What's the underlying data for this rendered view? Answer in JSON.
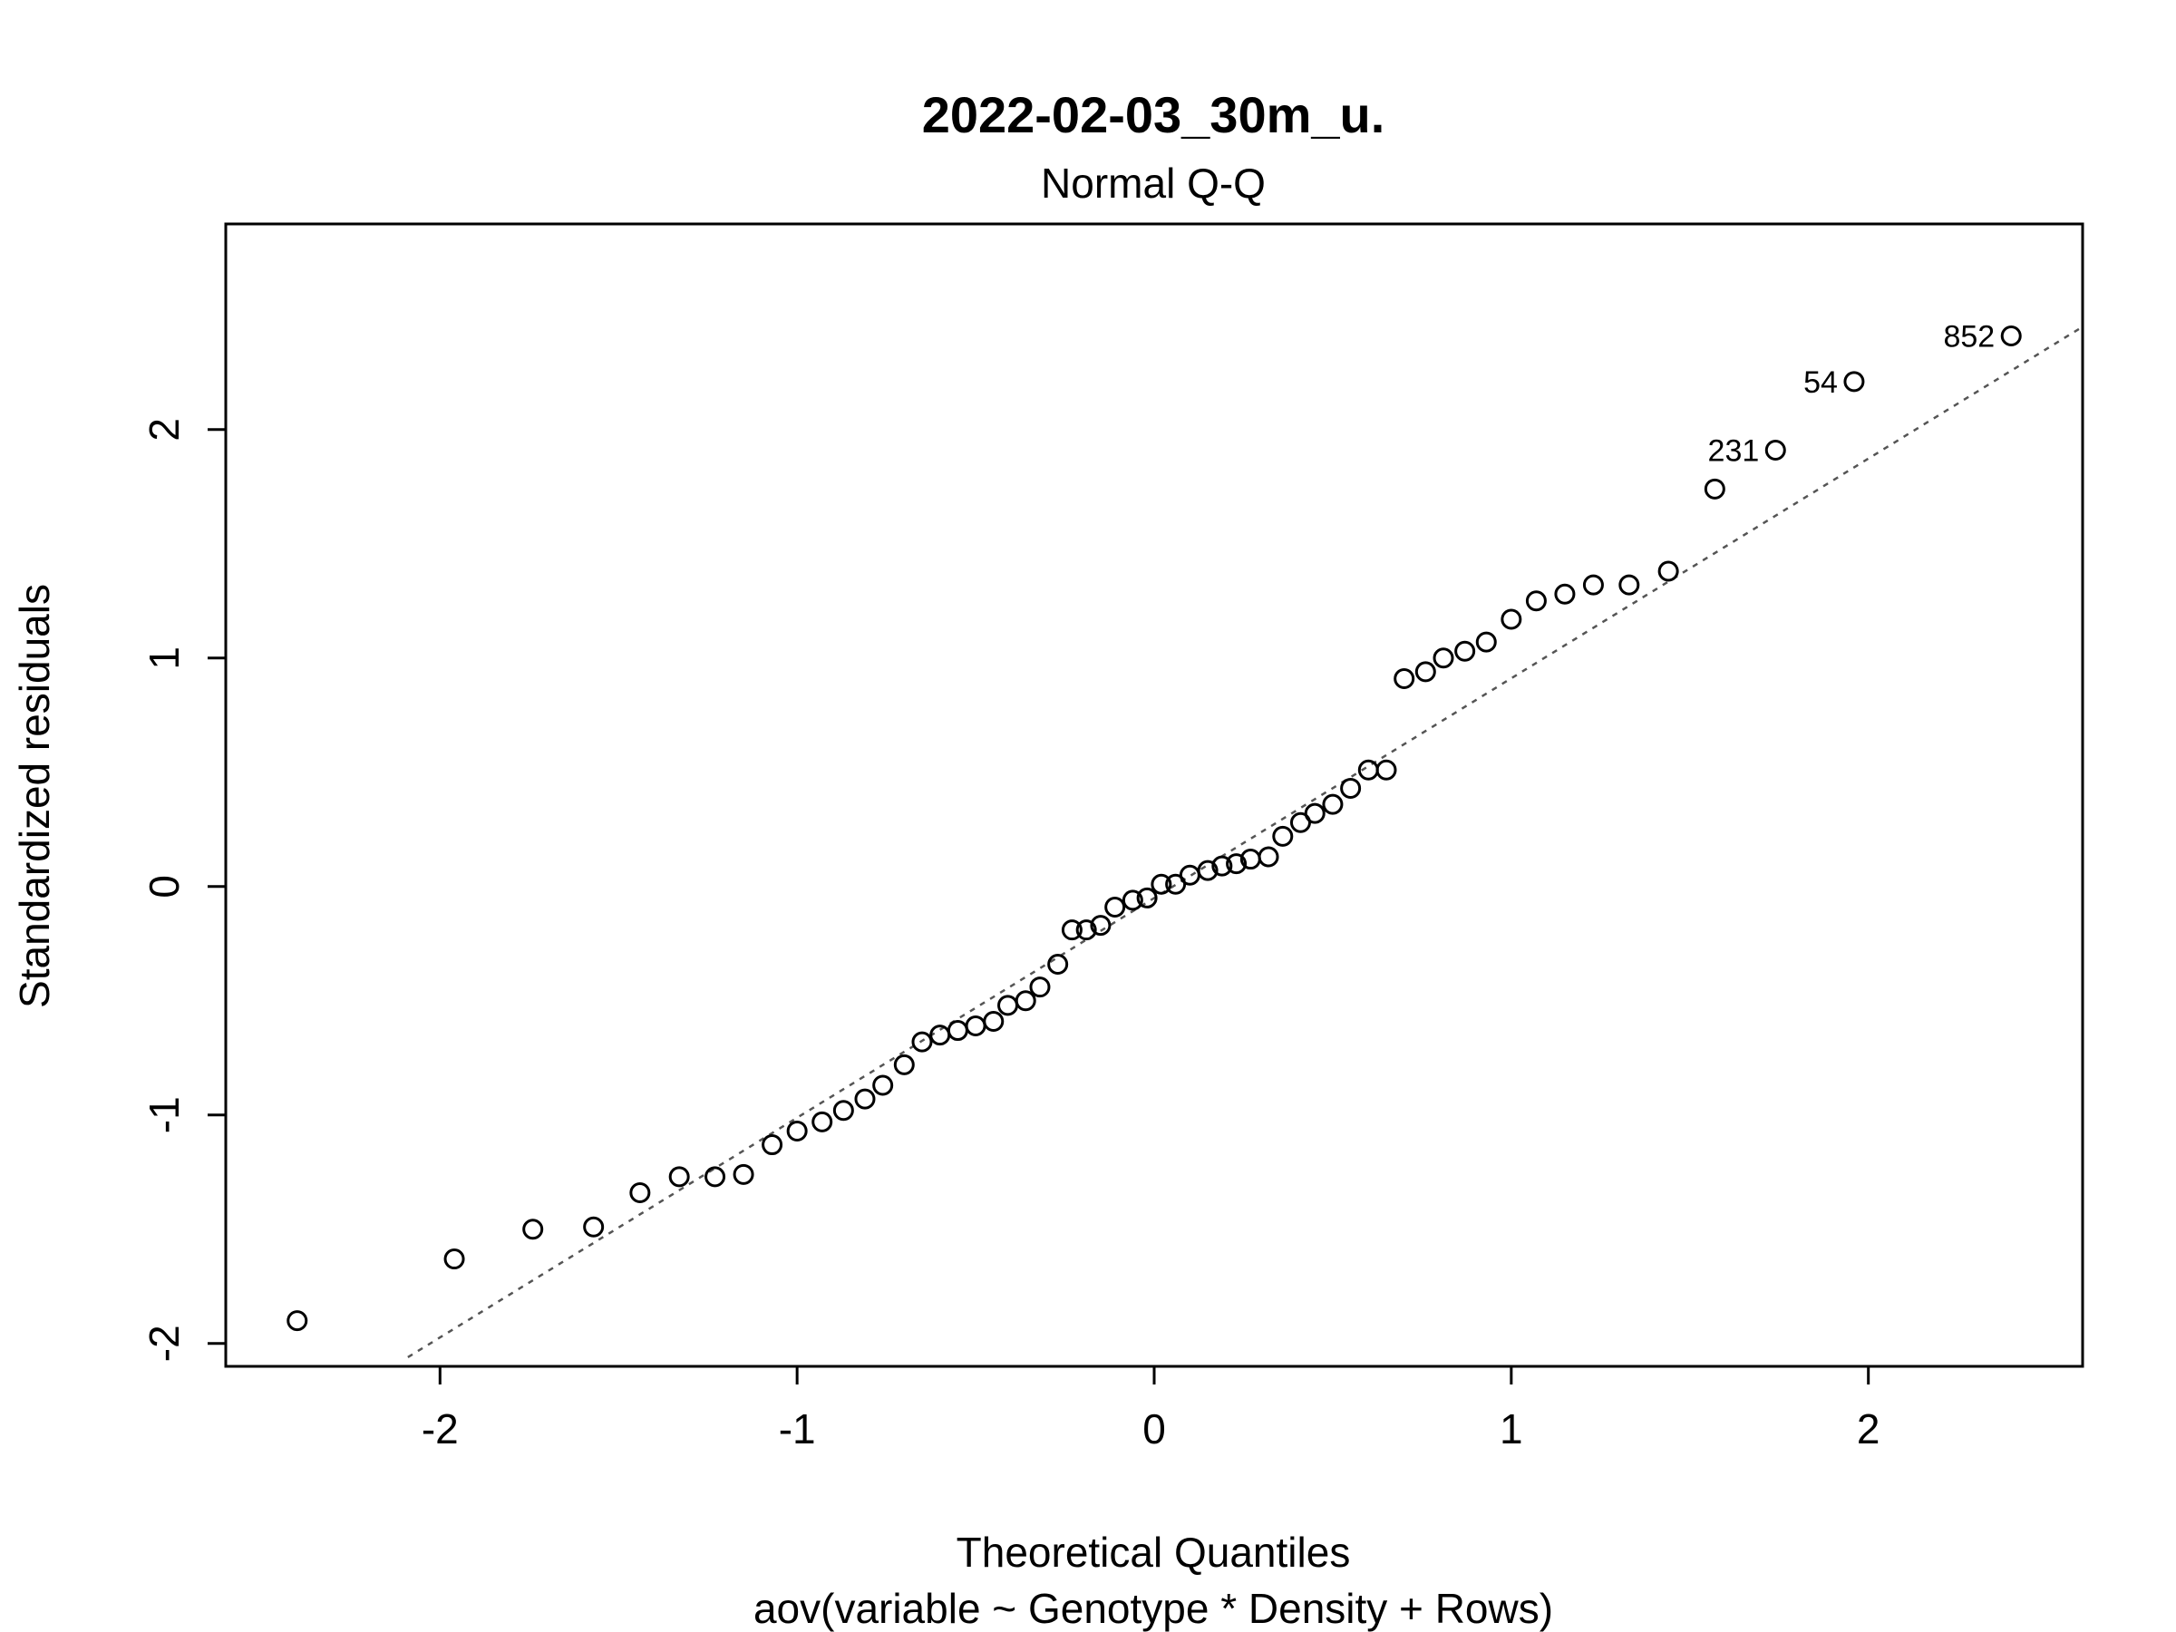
{
  "chart_data": {
    "type": "scatter",
    "title": "2022-02-03_30m_u.",
    "subtitle": "Normal Q-Q",
    "xlabel": "Theoretical Quantiles",
    "xlabel2": "aov(variable ~ Genotype * Density + Rows)",
    "ylabel": "Standardized residuals",
    "xlim": [
      -2.6,
      2.6
    ],
    "ylim": [
      -2.1,
      2.9
    ],
    "xticks": [
      -2,
      -1,
      0,
      1,
      2
    ],
    "yticks": [
      -2,
      -1,
      0,
      1,
      2
    ],
    "xtick_labels": [
      "-2",
      "-1",
      "0",
      "1",
      "2"
    ],
    "ytick_labels": [
      "-2",
      "-1",
      "0",
      "1",
      "2"
    ],
    "grid": false,
    "reference_line": {
      "x1": -2.09,
      "y1": -2.06,
      "x2": 2.6,
      "y2": 2.45
    },
    "points": [
      {
        "x": -2.4,
        "y": -1.9
      },
      {
        "x": -1.96,
        "y": -1.63
      },
      {
        "x": -1.74,
        "y": -1.5
      },
      {
        "x": -1.57,
        "y": -1.49
      },
      {
        "x": -1.44,
        "y": -1.34
      },
      {
        "x": -1.33,
        "y": -1.27
      },
      {
        "x": -1.23,
        "y": -1.27
      },
      {
        "x": -1.15,
        "y": -1.26
      },
      {
        "x": -1.07,
        "y": -1.13
      },
      {
        "x": -1.0,
        "y": -1.07
      },
      {
        "x": -0.93,
        "y": -1.03
      },
      {
        "x": -0.87,
        "y": -0.98
      },
      {
        "x": -0.81,
        "y": -0.93
      },
      {
        "x": -0.76,
        "y": -0.87
      },
      {
        "x": -0.7,
        "y": -0.78
      },
      {
        "x": -0.65,
        "y": -0.68
      },
      {
        "x": -0.6,
        "y": -0.65
      },
      {
        "x": -0.55,
        "y": -0.63
      },
      {
        "x": -0.5,
        "y": -0.61
      },
      {
        "x": -0.45,
        "y": -0.59
      },
      {
        "x": -0.41,
        "y": -0.52
      },
      {
        "x": -0.36,
        "y": -0.5
      },
      {
        "x": -0.32,
        "y": -0.44
      },
      {
        "x": -0.27,
        "y": -0.34
      },
      {
        "x": -0.23,
        "y": -0.19
      },
      {
        "x": -0.19,
        "y": -0.19
      },
      {
        "x": -0.15,
        "y": -0.17
      },
      {
        "x": -0.11,
        "y": -0.09
      },
      {
        "x": -0.06,
        "y": -0.06
      },
      {
        "x": -0.02,
        "y": -0.05
      },
      {
        "x": 0.02,
        "y": 0.01
      },
      {
        "x": 0.06,
        "y": 0.01
      },
      {
        "x": 0.1,
        "y": 0.05
      },
      {
        "x": 0.15,
        "y": 0.07
      },
      {
        "x": 0.19,
        "y": 0.09
      },
      {
        "x": 0.23,
        "y": 0.1
      },
      {
        "x": 0.27,
        "y": 0.12
      },
      {
        "x": 0.32,
        "y": 0.13
      },
      {
        "x": 0.36,
        "y": 0.22
      },
      {
        "x": 0.41,
        "y": 0.28
      },
      {
        "x": 0.45,
        "y": 0.32
      },
      {
        "x": 0.5,
        "y": 0.36
      },
      {
        "x": 0.55,
        "y": 0.43
      },
      {
        "x": 0.6,
        "y": 0.51
      },
      {
        "x": 0.65,
        "y": 0.51
      },
      {
        "x": 0.7,
        "y": 0.91
      },
      {
        "x": 0.76,
        "y": 0.94
      },
      {
        "x": 0.81,
        "y": 1.0
      },
      {
        "x": 0.87,
        "y": 1.03
      },
      {
        "x": 0.93,
        "y": 1.07
      },
      {
        "x": 1.0,
        "y": 1.17
      },
      {
        "x": 1.07,
        "y": 1.25
      },
      {
        "x": 1.15,
        "y": 1.28
      },
      {
        "x": 1.23,
        "y": 1.32
      },
      {
        "x": 1.33,
        "y": 1.32
      },
      {
        "x": 1.44,
        "y": 1.38
      },
      {
        "x": 1.57,
        "y": 1.74
      },
      {
        "x": 1.74,
        "y": 1.91,
        "label": "231"
      },
      {
        "x": 1.96,
        "y": 2.21,
        "label": "54"
      },
      {
        "x": 2.4,
        "y": 2.41,
        "label": "852"
      }
    ]
  }
}
